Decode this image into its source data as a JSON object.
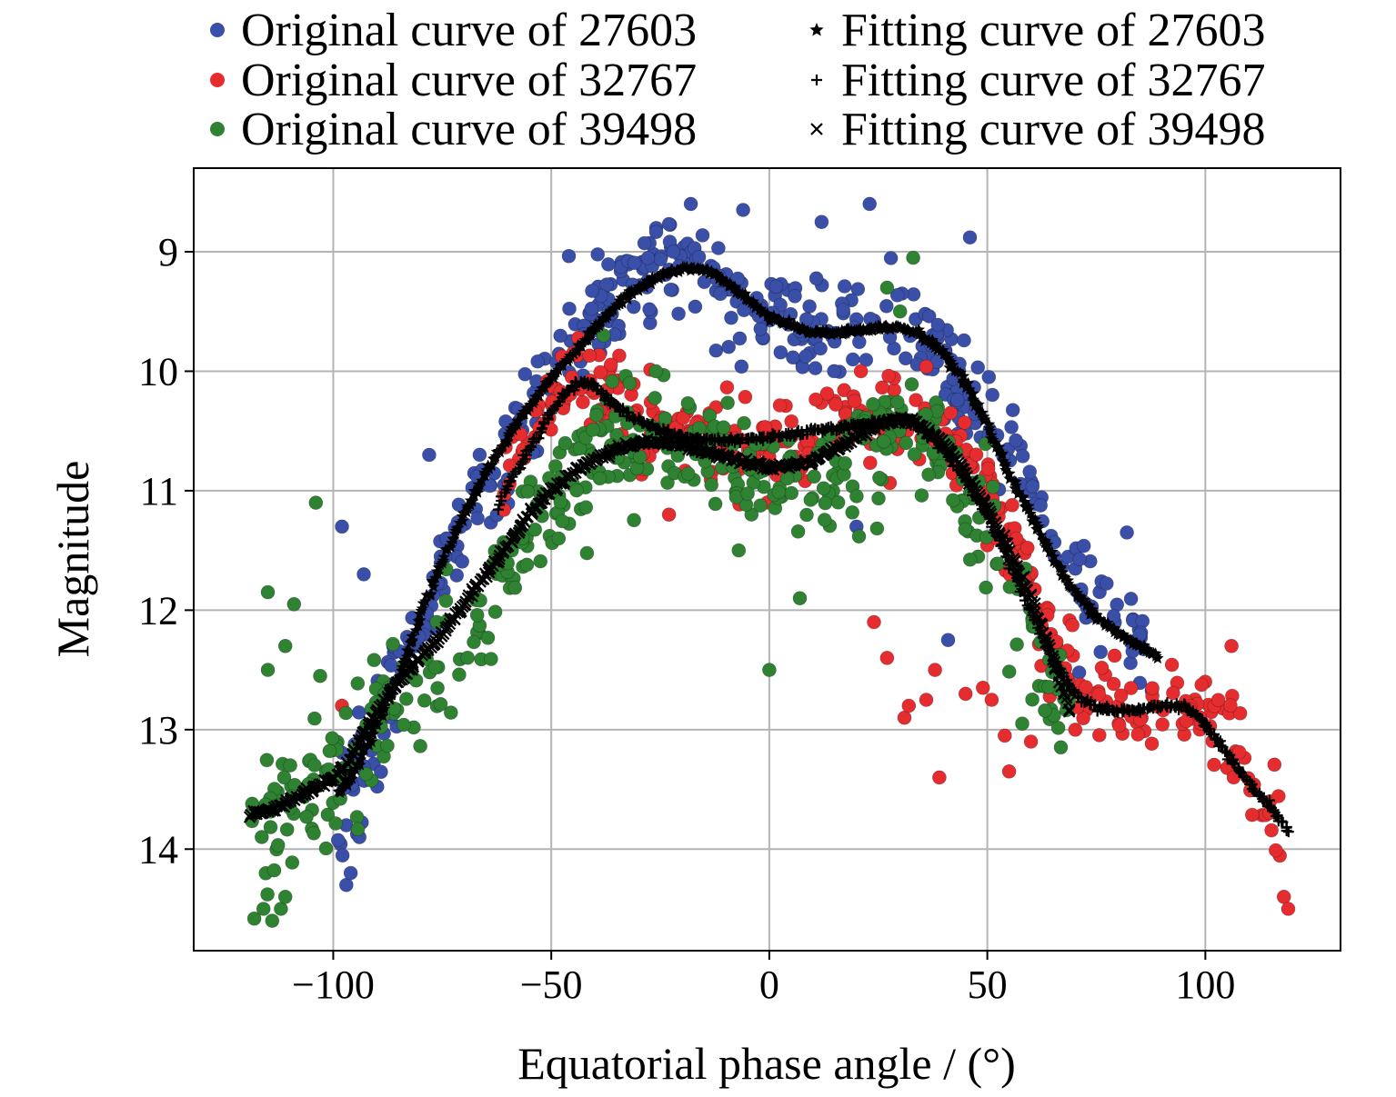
{
  "chart_data": {
    "type": "scatter",
    "title": "",
    "xlabel": "Equatorial phase angle / (°)",
    "ylabel": "Magnitude",
    "xlim": [
      -132,
      131
    ],
    "ylim": [
      14.85,
      8.3
    ],
    "y_inverted": true,
    "x_ticks": [
      -100,
      -50,
      0,
      50,
      100
    ],
    "x_tick_labels": [
      "−100",
      "−50",
      "0",
      "50",
      "100"
    ],
    "y_ticks": [
      9,
      10,
      11,
      12,
      13,
      14
    ],
    "y_tick_labels": [
      "9",
      "10",
      "11",
      "12",
      "13",
      "14"
    ],
    "grid": true,
    "legend_position": "top",
    "series": [
      {
        "name": "Original curve of 27603",
        "kind": "points",
        "color": "#3a4fa8",
        "marker": "circle",
        "x_range": [
          -99,
          89
        ],
        "anchors": [
          [
            -99,
            13.7
          ],
          [
            -90,
            13.0
          ],
          [
            -80,
            12.1
          ],
          [
            -70,
            11.3
          ],
          [
            -60,
            10.6
          ],
          [
            -50,
            10.1
          ],
          [
            -40,
            9.6
          ],
          [
            -30,
            9.2
          ],
          [
            -20,
            9.05
          ],
          [
            -15,
            9.1
          ],
          [
            -10,
            9.35
          ],
          [
            -5,
            9.5
          ],
          [
            0,
            9.55
          ],
          [
            10,
            9.65
          ],
          [
            20,
            9.6
          ],
          [
            30,
            9.55
          ],
          [
            40,
            9.95
          ],
          [
            50,
            10.4
          ],
          [
            60,
            11.0
          ],
          [
            70,
            11.7
          ],
          [
            80,
            12.1
          ],
          [
            89,
            12.4
          ]
        ],
        "spread": 0.22,
        "count": 420,
        "outliers": [
          [
            -98,
            11.3
          ],
          [
            -93,
            11.7
          ],
          [
            -97,
            14.3
          ],
          [
            -96,
            14.2
          ],
          [
            -94,
            13.9
          ],
          [
            -78,
            10.7
          ],
          [
            -22,
            9.0
          ],
          [
            -6,
            8.65
          ],
          [
            12,
            8.75
          ],
          [
            23,
            8.6
          ],
          [
            46,
            8.88
          ],
          [
            -18,
            8.6
          ],
          [
            41,
            12.25
          ],
          [
            82,
            11.35
          ],
          [
            20,
            11.3
          ],
          [
            -97,
            13.8
          ]
        ]
      },
      {
        "name": "Original curve of 32767",
        "kind": "points",
        "color": "#e52d2f",
        "marker": "circle",
        "x_range": [
          -62,
          119
        ],
        "anchors": [
          [
            -62,
            11.1
          ],
          [
            -55,
            10.5
          ],
          [
            -50,
            10.25
          ],
          [
            -45,
            10.1
          ],
          [
            -40,
            10.2
          ],
          [
            -30,
            10.4
          ],
          [
            -20,
            10.55
          ],
          [
            -10,
            10.6
          ],
          [
            0,
            10.55
          ],
          [
            10,
            10.5
          ],
          [
            20,
            10.45
          ],
          [
            30,
            10.35
          ],
          [
            40,
            10.5
          ],
          [
            50,
            11.0
          ],
          [
            60,
            11.8
          ],
          [
            65,
            12.3
          ],
          [
            70,
            12.7
          ],
          [
            80,
            12.85
          ],
          [
            90,
            12.8
          ],
          [
            100,
            12.9
          ],
          [
            105,
            13.0
          ],
          [
            110,
            13.4
          ],
          [
            115,
            13.8
          ],
          [
            119,
            14.2
          ]
        ],
        "spread": 0.2,
        "count": 380,
        "outliers": [
          [
            -98,
            12.8
          ],
          [
            -23,
            11.2
          ],
          [
            24,
            12.1
          ],
          [
            27,
            12.4
          ],
          [
            31,
            12.9
          ],
          [
            32,
            12.8
          ],
          [
            36,
            12.75
          ],
          [
            38,
            12.5
          ],
          [
            39,
            13.4
          ],
          [
            45,
            12.7
          ],
          [
            49,
            12.65
          ],
          [
            51,
            12.75
          ],
          [
            54,
            13.05
          ],
          [
            55,
            13.35
          ],
          [
            60,
            13.1
          ],
          [
            106,
            12.3
          ],
          [
            118,
            14.4
          ],
          [
            119,
            14.5
          ],
          [
            21,
            10.0
          ]
        ]
      },
      {
        "name": "Original curve of 39498",
        "kind": "points",
        "color": "#2e8232",
        "marker": "circle",
        "x_range": [
          -119,
          69
        ],
        "anchors": [
          [
            -119,
            14.1
          ],
          [
            -115,
            13.8
          ],
          [
            -110,
            13.6
          ],
          [
            -100,
            13.25
          ],
          [
            -90,
            12.9
          ],
          [
            -80,
            12.5
          ],
          [
            -70,
            12.2
          ],
          [
            -60,
            11.6
          ],
          [
            -50,
            11.15
          ],
          [
            -40,
            10.8
          ],
          [
            -30,
            10.6
          ],
          [
            -20,
            10.7
          ],
          [
            -10,
            10.75
          ],
          [
            0,
            10.9
          ],
          [
            10,
            10.85
          ],
          [
            20,
            10.75
          ],
          [
            30,
            10.45
          ],
          [
            35,
            10.5
          ],
          [
            40,
            10.7
          ],
          [
            50,
            11.3
          ],
          [
            55,
            11.7
          ],
          [
            60,
            12.1
          ],
          [
            65,
            12.6
          ],
          [
            69,
            12.8
          ]
        ],
        "spread": 0.28,
        "count": 430,
        "outliers": [
          [
            -104,
            11.1
          ],
          [
            -115,
            11.85
          ],
          [
            -115,
            12.5
          ],
          [
            -109,
            11.95
          ],
          [
            -111,
            12.3
          ],
          [
            -116,
            14.5
          ],
          [
            -114,
            14.6
          ],
          [
            -112,
            14.5
          ],
          [
            -111,
            14.4
          ],
          [
            -7,
            11.5
          ],
          [
            7,
            11.9
          ],
          [
            0,
            12.5
          ],
          [
            33,
            9.05
          ],
          [
            30,
            9.5
          ],
          [
            27,
            9.3
          ],
          [
            -38,
            9.7
          ],
          [
            -32,
            10.1
          ],
          [
            -26,
            10.0
          ],
          [
            58,
            12.95
          ],
          [
            -103,
            12.55
          ]
        ]
      },
      {
        "name": "Fitting curve of 27603",
        "kind": "curve",
        "marker": "star",
        "color": "#000000",
        "points": [
          [
            -99,
            13.55
          ],
          [
            -95,
            13.35
          ],
          [
            -90,
            12.95
          ],
          [
            -85,
            12.55
          ],
          [
            -80,
            12.05
          ],
          [
            -75,
            11.6
          ],
          [
            -70,
            11.2
          ],
          [
            -65,
            10.85
          ],
          [
            -60,
            10.55
          ],
          [
            -55,
            10.3
          ],
          [
            -50,
            10.05
          ],
          [
            -45,
            9.85
          ],
          [
            -40,
            9.65
          ],
          [
            -35,
            9.45
          ],
          [
            -30,
            9.3
          ],
          [
            -25,
            9.2
          ],
          [
            -20,
            9.15
          ],
          [
            -17,
            9.14
          ],
          [
            -14,
            9.16
          ],
          [
            -10,
            9.25
          ],
          [
            -5,
            9.4
          ],
          [
            0,
            9.55
          ],
          [
            5,
            9.62
          ],
          [
            10,
            9.67
          ],
          [
            15,
            9.68
          ],
          [
            20,
            9.66
          ],
          [
            25,
            9.63
          ],
          [
            30,
            9.63
          ],
          [
            35,
            9.7
          ],
          [
            40,
            9.85
          ],
          [
            45,
            10.1
          ],
          [
            50,
            10.45
          ],
          [
            55,
            10.85
          ],
          [
            60,
            11.2
          ],
          [
            65,
            11.55
          ],
          [
            70,
            11.85
          ],
          [
            75,
            12.05
          ],
          [
            80,
            12.2
          ],
          [
            85,
            12.3
          ],
          [
            89,
            12.4
          ]
        ]
      },
      {
        "name": "Fitting curve of 32767",
        "kind": "curve",
        "marker": "plus",
        "color": "#000000",
        "points": [
          [
            -62,
            11.15
          ],
          [
            -60,
            10.95
          ],
          [
            -55,
            10.65
          ],
          [
            -50,
            10.35
          ],
          [
            -47,
            10.2
          ],
          [
            -44,
            10.1
          ],
          [
            -41,
            10.1
          ],
          [
            -38,
            10.2
          ],
          [
            -35,
            10.3
          ],
          [
            -30,
            10.4
          ],
          [
            -25,
            10.5
          ],
          [
            -20,
            10.55
          ],
          [
            -15,
            10.57
          ],
          [
            -10,
            10.58
          ],
          [
            -5,
            10.57
          ],
          [
            0,
            10.55
          ],
          [
            5,
            10.53
          ],
          [
            10,
            10.5
          ],
          [
            15,
            10.48
          ],
          [
            20,
            10.45
          ],
          [
            25,
            10.42
          ],
          [
            30,
            10.4
          ],
          [
            35,
            10.48
          ],
          [
            40,
            10.65
          ],
          [
            45,
            10.9
          ],
          [
            50,
            11.2
          ],
          [
            55,
            11.6
          ],
          [
            60,
            12.0
          ],
          [
            65,
            12.4
          ],
          [
            70,
            12.7
          ],
          [
            75,
            12.82
          ],
          [
            80,
            12.85
          ],
          [
            85,
            12.83
          ],
          [
            90,
            12.8
          ],
          [
            95,
            12.8
          ],
          [
            100,
            12.95
          ],
          [
            105,
            13.2
          ],
          [
            110,
            13.45
          ],
          [
            115,
            13.65
          ],
          [
            119,
            13.85
          ]
        ]
      },
      {
        "name": "Fitting curve of 39498",
        "kind": "curve",
        "marker": "x",
        "color": "#000000",
        "points": [
          [
            -119,
            13.72
          ],
          [
            -115,
            13.68
          ],
          [
            -110,
            13.6
          ],
          [
            -105,
            13.5
          ],
          [
            -100,
            13.4
          ],
          [
            -97,
            13.3
          ],
          [
            -94,
            13.1
          ],
          [
            -90,
            12.85
          ],
          [
            -85,
            12.6
          ],
          [
            -80,
            12.4
          ],
          [
            -75,
            12.2
          ],
          [
            -70,
            11.95
          ],
          [
            -65,
            11.7
          ],
          [
            -60,
            11.45
          ],
          [
            -55,
            11.2
          ],
          [
            -50,
            11.0
          ],
          [
            -45,
            10.85
          ],
          [
            -40,
            10.75
          ],
          [
            -35,
            10.65
          ],
          [
            -30,
            10.6
          ],
          [
            -25,
            10.6
          ],
          [
            -20,
            10.62
          ],
          [
            -15,
            10.67
          ],
          [
            -10,
            10.72
          ],
          [
            -5,
            10.77
          ],
          [
            0,
            10.8
          ],
          [
            5,
            10.8
          ],
          [
            10,
            10.75
          ],
          [
            15,
            10.65
          ],
          [
            20,
            10.55
          ],
          [
            25,
            10.45
          ],
          [
            30,
            10.4
          ],
          [
            35,
            10.45
          ],
          [
            40,
            10.6
          ],
          [
            45,
            10.85
          ],
          [
            50,
            11.15
          ],
          [
            55,
            11.5
          ],
          [
            60,
            11.9
          ],
          [
            65,
            12.4
          ],
          [
            69,
            12.85
          ]
        ]
      }
    ]
  }
}
